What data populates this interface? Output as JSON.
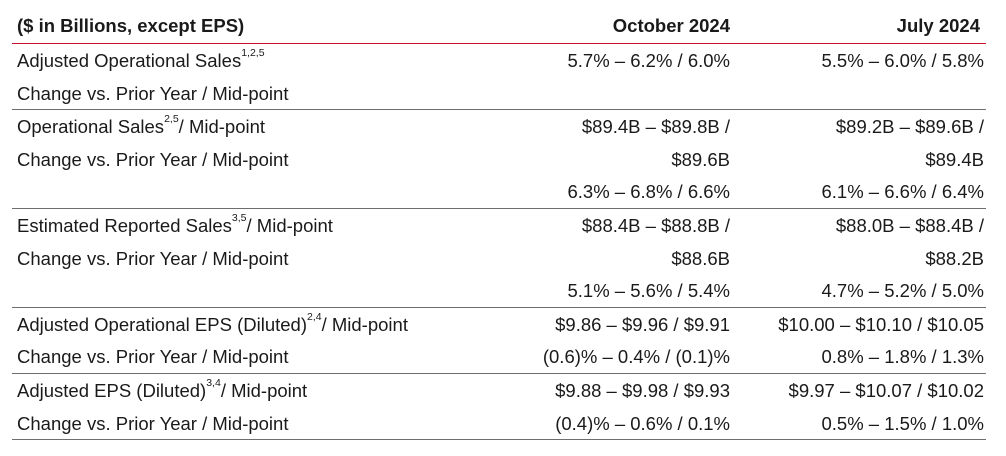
{
  "header": {
    "label": "($ in Billions, except EPS)",
    "col1": "October 2024",
    "col2": "July 2024"
  },
  "groups": [
    {
      "rows": [
        {
          "label": "Adjusted Operational Sales",
          "sup": "1,2,5",
          "label_tail": "",
          "c1": "5.7% – 6.2% / 6.0%",
          "c2": "5.5% – 6.0% / 5.8%"
        },
        {
          "label": "Change vs. Prior Year / Mid-point",
          "sup": "",
          "label_tail": "",
          "c1": "",
          "c2": ""
        }
      ]
    },
    {
      "rows": [
        {
          "label": "Operational Sales",
          "sup": "2,5",
          "label_tail": "/ Mid-point",
          "c1": "$89.4B – $89.8B /",
          "c2": "$89.2B – $89.6B /"
        },
        {
          "label": "Change vs. Prior Year / Mid-point",
          "sup": "",
          "label_tail": "",
          "c1": "$89.6B",
          "c2": "$89.4B"
        },
        {
          "label": "",
          "sup": "",
          "label_tail": "",
          "c1": "6.3% – 6.8% / 6.6%",
          "c2": "6.1% – 6.6% / 6.4%"
        }
      ]
    },
    {
      "rows": [
        {
          "label": "Estimated Reported Sales",
          "sup": "3,5",
          "label_tail": "/ Mid-point",
          "c1": "$88.4B – $88.8B /",
          "c2": "$88.0B – $88.4B /"
        },
        {
          "label": "Change vs. Prior Year / Mid-point",
          "sup": "",
          "label_tail": "",
          "c1": "$88.6B",
          "c2": "$88.2B"
        },
        {
          "label": "",
          "sup": "",
          "label_tail": "",
          "c1": "5.1% – 5.6% / 5.4%",
          "c2": "4.7% – 5.2% / 5.0%"
        }
      ]
    },
    {
      "rows": [
        {
          "label": "Adjusted Operational EPS (Diluted)",
          "sup": "2,4",
          "label_tail": "/ Mid-point",
          "c1": "$9.86 – $9.96 / $9.91",
          "c2": "$10.00 – $10.10 / $10.05"
        },
        {
          "label": "Change vs. Prior Year / Mid-point",
          "sup": "",
          "label_tail": "",
          "c1": "(0.6)% – 0.4% / (0.1)%",
          "c2": "0.8% – 1.8% / 1.3%"
        }
      ]
    },
    {
      "rows": [
        {
          "label": "Adjusted EPS (Diluted)",
          "sup": "3,4",
          "label_tail": "/ Mid-point",
          "c1": "$9.88 – $9.98 / $9.93",
          "c2": "$9.97 – $10.07 / $10.02"
        },
        {
          "label": "Change vs. Prior Year / Mid-point",
          "sup": "",
          "label_tail": "",
          "c1": "(0.4)% – 0.6% / 0.1%",
          "c2": "0.5% – 1.5% / 1.0%"
        }
      ]
    }
  ],
  "colors": {
    "header_rule": "#c8102e",
    "row_rule": "#6e6e6e",
    "text": "#1a1a1a"
  }
}
